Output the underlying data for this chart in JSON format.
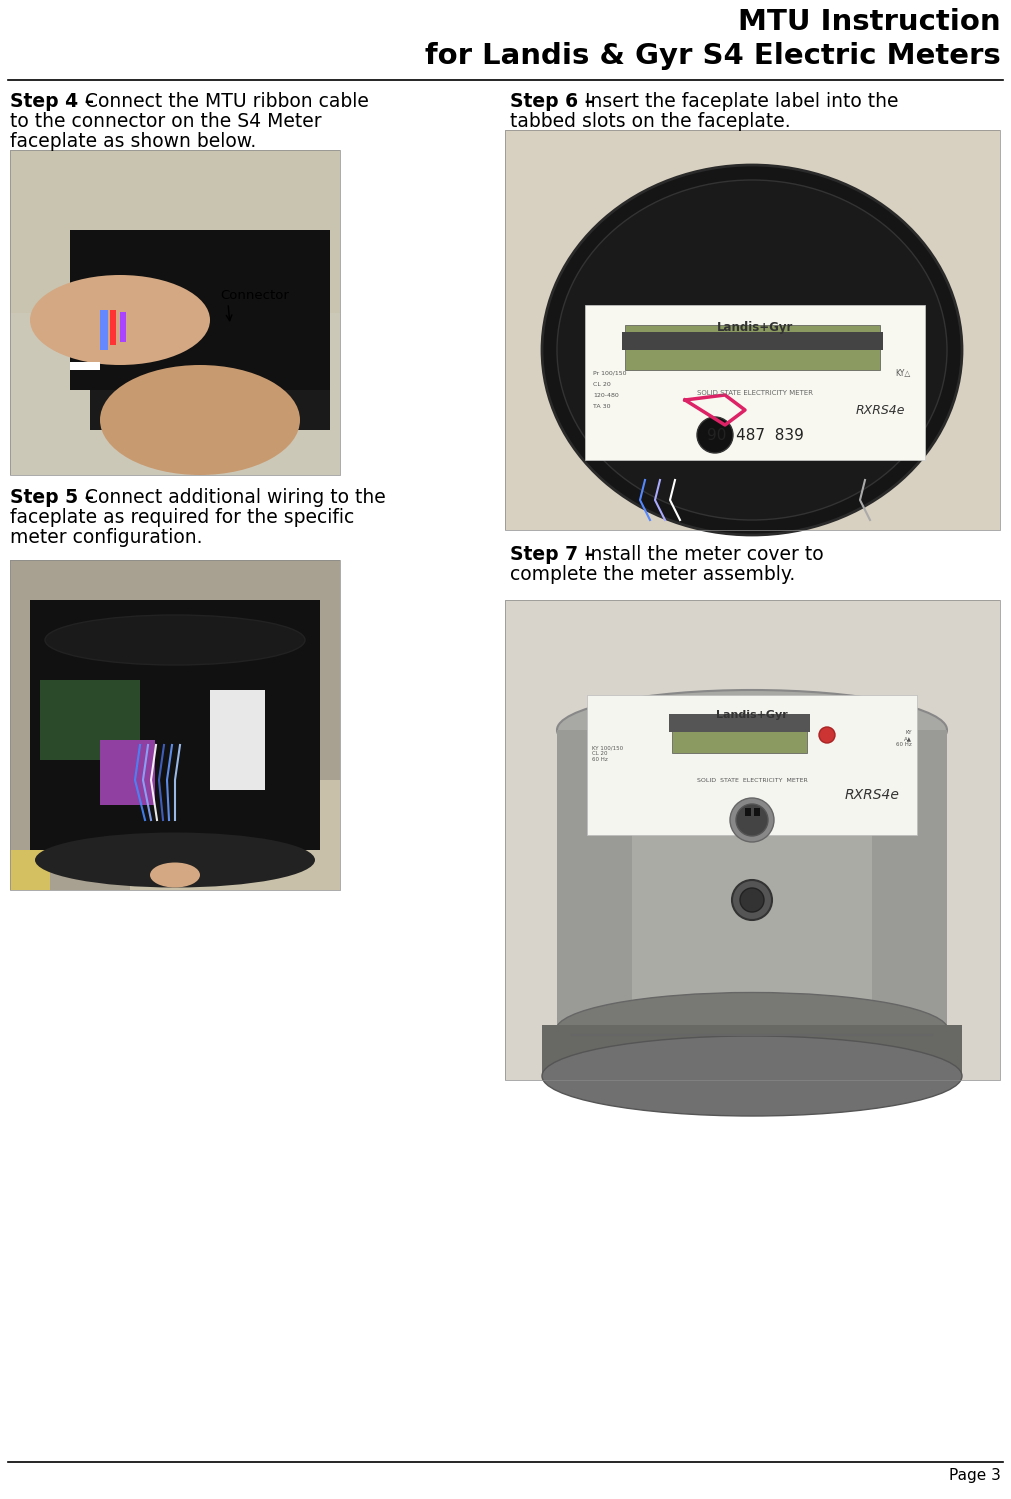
{
  "title_line1": "MTU Instruction",
  "title_line2": "for Landis & Gyr S4 Electric Meters",
  "step4_bold": "Step 4 –",
  "step4_text": "Connect the MTU ribbon cable\nto the connector on the S4 Meter\nfaceplate as shown below.",
  "step5_bold": "Step 5 –",
  "step5_text": "Connect additional wiring to the\nfaceplate as required for the specific\nmeter configuration.",
  "step6_bold": "Step 6 –",
  "step6_text": "Insert the faceplate label into the\ntabbed slots on the faceplate.",
  "step7_bold": "Step 7 –",
  "step7_text": "Install the meter cover to\ncomplete the meter assembly.",
  "page_text": "Page 3",
  "bg_color": "#ffffff",
  "text_color": "#000000",
  "title_fontsize": 21,
  "step_fontsize": 13.5,
  "page_fontsize": 11
}
